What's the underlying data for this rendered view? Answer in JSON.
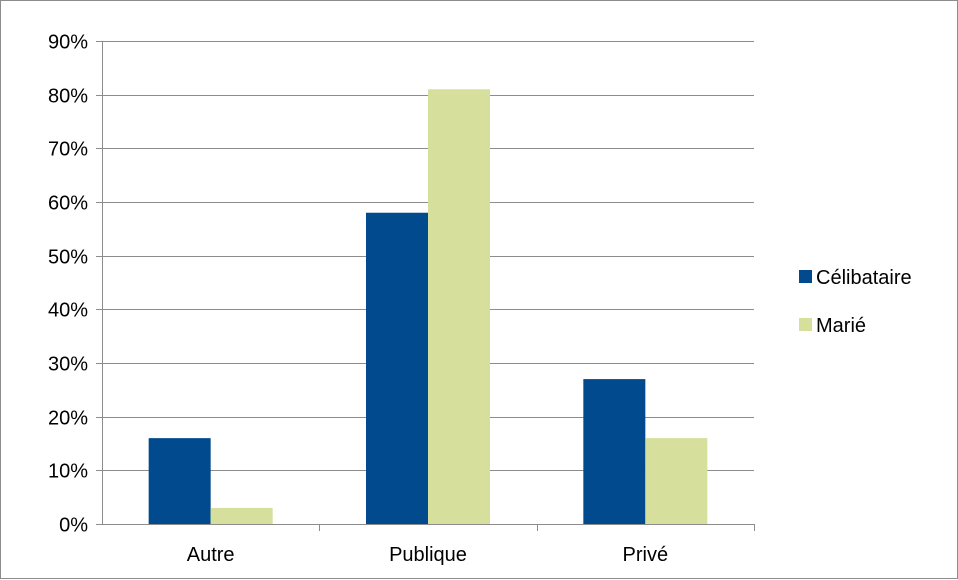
{
  "chart_data": {
    "type": "bar",
    "title": "",
    "xlabel": "",
    "ylabel": "",
    "categories": [
      "Autre",
      "Publique",
      "Privé"
    ],
    "series": [
      {
        "name": "Célibataire",
        "color": "#004a8d",
        "values": [
          16,
          58,
          27
        ]
      },
      {
        "name": "Marié",
        "color": "#d6df9c",
        "values": [
          3,
          81,
          16
        ]
      }
    ],
    "ylim": [
      0,
      90
    ],
    "yticks": [
      0,
      10,
      20,
      30,
      40,
      50,
      60,
      70,
      80,
      90
    ],
    "ytick_labels": [
      "0%",
      "10%",
      "20%",
      "30%",
      "40%",
      "50%",
      "60%",
      "70%",
      "80%",
      "90%"
    ],
    "grid": true,
    "legend_position": "right",
    "gridline_color": "#8c8c8c"
  }
}
